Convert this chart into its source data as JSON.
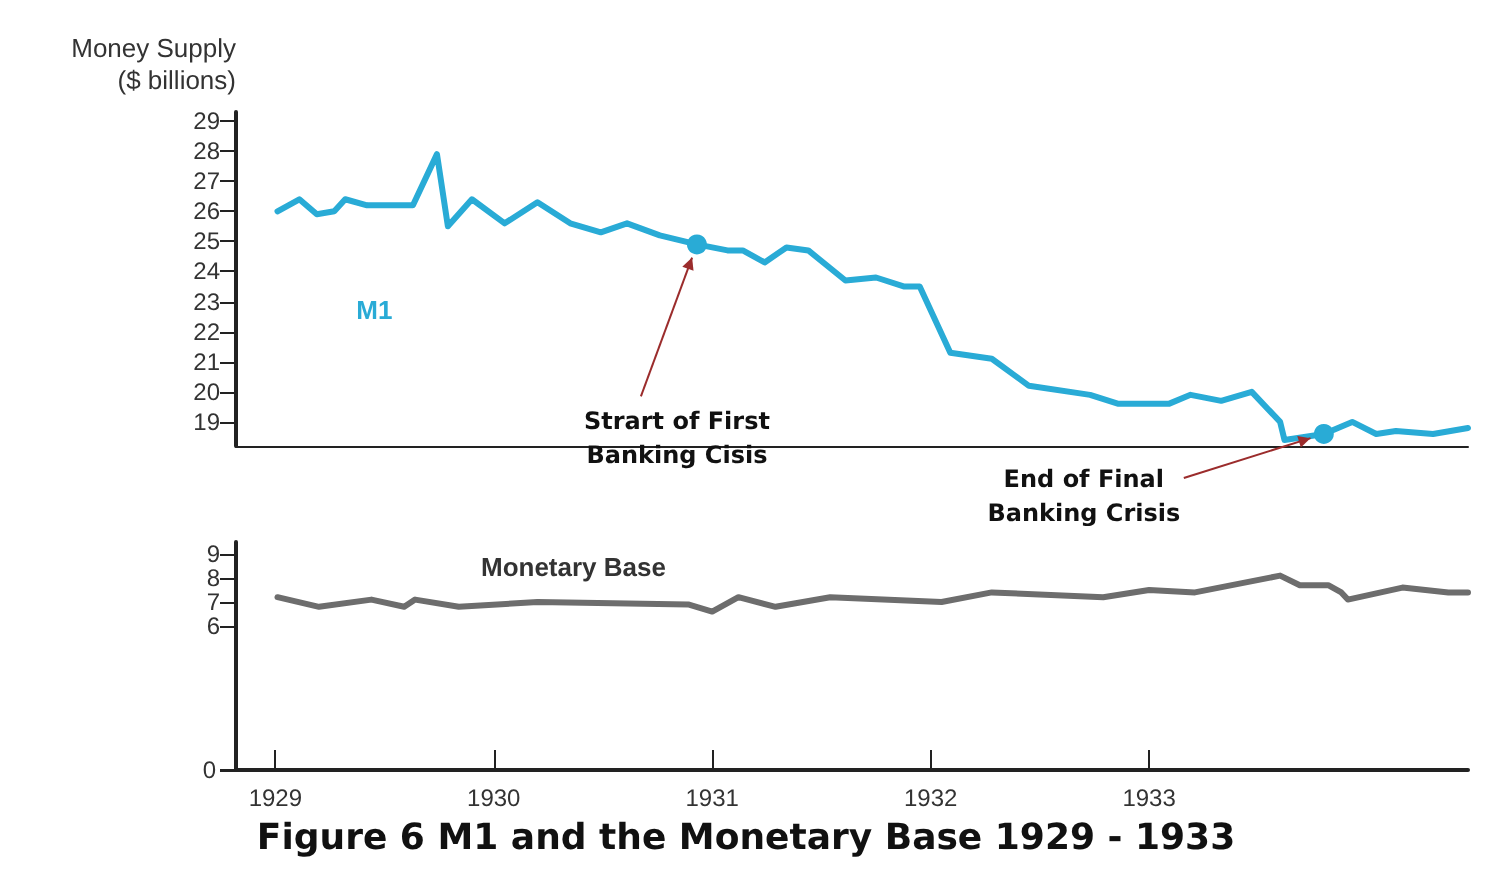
{
  "chart_data": [
    {
      "type": "line",
      "ylabel": "Money Supply\n($ billions)",
      "xlim": [
        1928.82,
        1934.46
      ],
      "xticks": [
        1929,
        1930,
        1931,
        1932,
        1933
      ],
      "ylim": [
        18.2,
        29.3
      ],
      "yticks": [
        19,
        20,
        21,
        22,
        23,
        24,
        25,
        26,
        27,
        28,
        29
      ],
      "tick_labels": "y",
      "grid": false,
      "legend": false,
      "marker": "none",
      "line_style": "solid",
      "series": [
        {
          "name": "M1",
          "color": "#29abd6",
          "x": [
            1929.01,
            1929.11,
            1929.19,
            1929.27,
            1929.32,
            1929.42,
            1929.55,
            1929.63,
            1929.74,
            1929.79,
            1929.9,
            1930.05,
            1930.2,
            1930.35,
            1930.49,
            1930.61,
            1930.76,
            1930.93,
            1931.07,
            1931.14,
            1931.24,
            1931.34,
            1931.44,
            1931.61,
            1931.75,
            1931.88,
            1931.95,
            1932.09,
            1932.28,
            1932.45,
            1932.73,
            1932.86,
            1933.09,
            1933.19,
            1933.33,
            1933.47,
            1933.6,
            1933.62,
            1933.8,
            1933.93,
            1934.04,
            1934.13,
            1934.3,
            1934.46
          ],
          "values": [
            26.0,
            26.4,
            25.9,
            26.0,
            26.4,
            26.2,
            26.2,
            26.2,
            27.9,
            25.5,
            26.4,
            25.6,
            26.3,
            25.6,
            25.3,
            25.6,
            25.2,
            24.9,
            24.7,
            24.7,
            24.3,
            24.8,
            24.7,
            23.7,
            23.8,
            23.5,
            23.5,
            21.3,
            21.1,
            20.2,
            19.9,
            19.6,
            19.6,
            19.9,
            19.7,
            20.0,
            19.0,
            18.4,
            18.6,
            19.0,
            18.6,
            18.7,
            18.6,
            18.8
          ]
        }
      ],
      "annotations": [
        {
          "text": "Strart of First\nBanking Cisis",
          "x": 1930.93,
          "y": 24.9
        },
        {
          "text": "End of Final\nBanking Crisis",
          "x": 1933.8,
          "y": 18.6
        }
      ]
    },
    {
      "type": "line",
      "title": "Figure 6 M1 and the Monetary Base 1929 - 1933",
      "xlim": [
        1928.82,
        1934.46
      ],
      "xticks": [
        1929,
        1930,
        1931,
        1932,
        1933
      ],
      "ylim": [
        0,
        9.5
      ],
      "yticks": [
        0,
        6,
        7,
        8,
        9
      ],
      "grid": false,
      "legend": false,
      "marker": "none",
      "line_style": "solid",
      "series": [
        {
          "name": "Monetary Base",
          "color": "#6d6d6d",
          "x": [
            1929.01,
            1929.2,
            1929.44,
            1929.59,
            1929.64,
            1929.84,
            1930.2,
            1930.89,
            1931.0,
            1931.12,
            1931.29,
            1931.54,
            1932.05,
            1932.28,
            1932.79,
            1933.0,
            1933.21,
            1933.6,
            1933.69,
            1933.82,
            1933.88,
            1933.91,
            1934.16,
            1934.37,
            1934.46
          ],
          "values": [
            7.2,
            6.8,
            7.1,
            6.8,
            7.1,
            6.8,
            7.0,
            6.9,
            6.6,
            7.2,
            6.8,
            7.2,
            7.0,
            7.4,
            7.2,
            7.5,
            7.4,
            8.1,
            7.7,
            7.7,
            7.4,
            7.1,
            7.6,
            7.4,
            7.4
          ]
        }
      ]
    }
  ]
}
